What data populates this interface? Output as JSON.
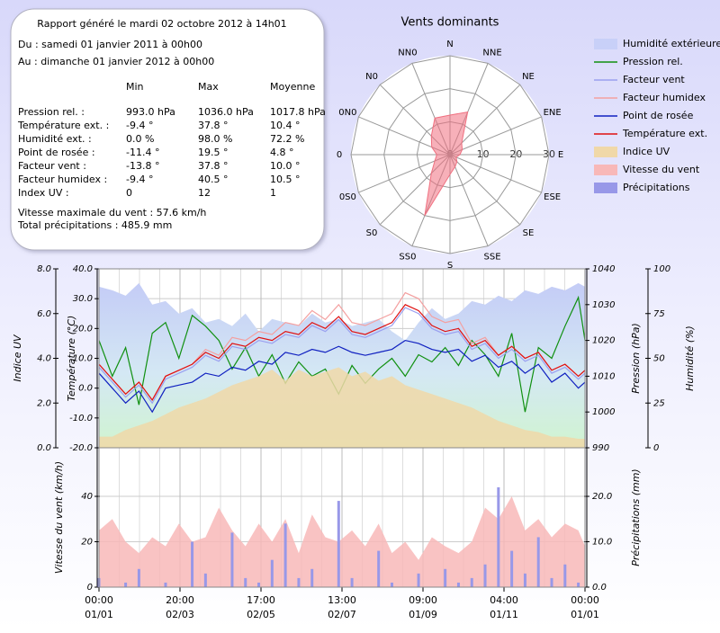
{
  "report": {
    "title": "Rapport généré le mardi 02 octobre 2012 à 14h01",
    "from": "Du : samedi 01 janvier 2011 à 00h00",
    "to": "Au : dimanche 01 janvier 2012 à 00h00",
    "columns": [
      "Min",
      "Max",
      "Moyenne"
    ],
    "rows": [
      [
        "Pression rel. :",
        "993.0 hPa",
        "1036.0 hPa",
        "1017.8 hPa"
      ],
      [
        "Température ext. :",
        "-9.4 °",
        "37.8 °",
        "10.4 °"
      ],
      [
        "Humidité ext. :",
        "0.0 %",
        "98.0 %",
        "72.2 %"
      ],
      [
        "Point de rosée :",
        "-11.4 °",
        "19.5 °",
        "4.8 °"
      ],
      [
        "Facteur vent :",
        "-13.8 °",
        "37.8 °",
        "10.0 °"
      ],
      [
        "Facteur humidex :",
        "-9.4 °",
        "40.5 °",
        "10.5 °"
      ],
      [
        "Index UV :",
        "0",
        "12",
        "1"
      ]
    ],
    "max_wind": "Vitesse maximale du vent : 57.6 km/h",
    "total_rain": "Total précipitations : 485.9 mm"
  },
  "chart_data": [
    {
      "type": "radar",
      "title": "Vents dominants",
      "categories": [
        "N",
        "NNE",
        "NE",
        "ENE",
        "E",
        "ESE",
        "SE",
        "SSE",
        "S",
        "SS0",
        "S0",
        "0S0",
        "0",
        "0N0",
        "N0",
        "NN0"
      ],
      "values": [
        12,
        14,
        5,
        4,
        3,
        2,
        3,
        4,
        6,
        20,
        8,
        5,
        4,
        6,
        8,
        12
      ],
      "color": "#f07080",
      "rlim": [
        0,
        30
      ],
      "rticks": [
        0,
        10,
        20,
        30
      ]
    },
    {
      "type": "line",
      "x": [
        0,
        10,
        20,
        30,
        40,
        50,
        60,
        70,
        80,
        90,
        100,
        110,
        120,
        130,
        140,
        150,
        160,
        170,
        180,
        190,
        200,
        210,
        220,
        230,
        240,
        250,
        260,
        270,
        280,
        290,
        300,
        310,
        320,
        330,
        340,
        350,
        360,
        365
      ],
      "xlim": [
        0,
        365
      ],
      "xticks": [
        {
          "value": 0,
          "label": "00:00"
        },
        {
          "value": 60.833,
          "label": "20:00"
        },
        {
          "value": 121.667,
          "label": "17:00"
        },
        {
          "value": 182.5,
          "label": "13:00"
        },
        {
          "value": 243.333,
          "label": "09:00"
        },
        {
          "value": 304.167,
          "label": "04:00"
        },
        {
          "value": 365,
          "label": "00:00"
        }
      ],
      "xtick_dates": [
        "01/01",
        "02/03",
        "02/05",
        "02/07",
        "01/09",
        "01/11",
        "01/01"
      ],
      "axes": {
        "uv": {
          "label": "Indice UV",
          "panel": "upper",
          "lim": [
            0,
            8
          ],
          "ticks": [
            {
              "value": 0,
              "label": "0.0"
            },
            {
              "value": 2,
              "label": "2.0"
            },
            {
              "value": 4,
              "label": "4.0"
            },
            {
              "value": 6,
              "label": "6.0"
            },
            {
              "value": 8,
              "label": "8.0"
            }
          ]
        },
        "temp": {
          "label": "Température (°C)",
          "panel": "upper",
          "lim": [
            -20,
            40
          ],
          "grid": true,
          "ticks": [
            {
              "value": -20,
              "label": "-20.0"
            },
            {
              "value": -10,
              "label": "-10.0"
            },
            {
              "value": 0,
              "label": "0.0"
            },
            {
              "value": 10,
              "label": "10.0"
            },
            {
              "value": 20,
              "label": "20.0"
            },
            {
              "value": 30,
              "label": "30.0"
            },
            {
              "value": 40,
              "label": "40.0"
            }
          ]
        },
        "pressure": {
          "label": "Pression (hPa)",
          "panel": "upper",
          "lim": [
            990,
            1040
          ],
          "ticks": [
            990,
            1000,
            1010,
            1020,
            1030,
            1040
          ]
        },
        "humidity": {
          "label": "Humidité (%)",
          "panel": "upper",
          "lim": [
            0,
            100
          ],
          "ticks": [
            0,
            25,
            50,
            75,
            100
          ]
        },
        "wind": {
          "label": "Vitesse du vent (km/h)",
          "panel": "lower",
          "lim": [
            0,
            61.4
          ],
          "grid": true,
          "ticks": [
            0,
            20,
            40
          ]
        },
        "rain": {
          "label": "Précipitations (mm)",
          "panel": "lower",
          "lim": [
            0,
            30.7
          ],
          "ticks": [
            {
              "value": 0,
              "label": "0.0"
            },
            {
              "value": 10,
              "label": "10.0"
            },
            {
              "value": 20,
              "label": "20.0"
            }
          ]
        }
      },
      "series": [
        {
          "name": "Humidité extérieure",
          "axis": "humidity",
          "style": "area",
          "color": "#c8d0f8",
          "values": [
            90,
            88,
            85,
            92,
            80,
            82,
            75,
            78,
            70,
            72,
            68,
            75,
            65,
            72,
            70,
            68,
            75,
            70,
            72,
            68,
            70,
            72,
            65,
            60,
            70,
            78,
            72,
            75,
            82,
            80,
            85,
            82,
            88,
            86,
            90,
            88,
            92,
            90
          ]
        },
        {
          "name": "Pression rel.",
          "axis": "pressure",
          "style": "line",
          "color": "#109010",
          "values": [
            1020,
            1010,
            1018,
            1002,
            1022,
            1025,
            1015,
            1027,
            1024,
            1020,
            1012,
            1018,
            1010,
            1016,
            1008,
            1014,
            1010,
            1012,
            1005,
            1013,
            1008,
            1012,
            1015,
            1010,
            1016,
            1014,
            1018,
            1013,
            1020,
            1016,
            1010,
            1022,
            1000,
            1018,
            1015,
            1024,
            1032,
            1020
          ]
        },
        {
          "name": "Facteur vent",
          "axis": "temp",
          "style": "line",
          "color": "#9aa0f0",
          "values": [
            7,
            2,
            -3,
            1,
            -5,
            3,
            5,
            7,
            11,
            9,
            14,
            13,
            16,
            15,
            18,
            17,
            21,
            19,
            23,
            18,
            17,
            19,
            21,
            27,
            25,
            20,
            18,
            19,
            13,
            15,
            10,
            13,
            9,
            11,
            5,
            7,
            3,
            5
          ]
        },
        {
          "name": "Facteur humidex",
          "axis": "temp",
          "style": "line",
          "color": "#f4a0a0",
          "values": [
            8,
            3,
            -2,
            2,
            -4,
            4,
            6,
            8,
            13,
            11,
            17,
            16,
            19,
            18,
            22,
            21,
            26,
            23,
            28,
            22,
            21,
            23,
            25,
            32,
            30,
            24,
            22,
            23,
            15,
            17,
            11,
            14,
            10,
            12,
            6,
            8,
            4,
            6
          ]
        },
        {
          "name": "Point de rosée",
          "axis": "temp",
          "style": "line",
          "color": "#1020c0",
          "values": [
            5,
            0,
            -5,
            -1,
            -8,
            0,
            1,
            2,
            5,
            4,
            7,
            6,
            9,
            8,
            12,
            11,
            13,
            12,
            14,
            12,
            11,
            12,
            13,
            16,
            15,
            13,
            12,
            13,
            9,
            11,
            7,
            9,
            5,
            8,
            2,
            5,
            0,
            2
          ]
        },
        {
          "name": "Température ext.",
          "axis": "temp",
          "style": "line",
          "color": "#e01010",
          "values": [
            8,
            3,
            -2,
            2,
            -4,
            4,
            6,
            8,
            12,
            10,
            15,
            14,
            17,
            16,
            19,
            18,
            22,
            20,
            24,
            19,
            18,
            20,
            22,
            28,
            26,
            21,
            19,
            20,
            14,
            16,
            11,
            14,
            10,
            12,
            6,
            8,
            4,
            6
          ]
        },
        {
          "name": "Indice UV",
          "axis": "uv",
          "style": "area",
          "color": "#f0d8a8",
          "values": [
            0.5,
            0.5,
            0.8,
            1,
            1.2,
            1.5,
            1.8,
            2,
            2.2,
            2.5,
            2.8,
            3,
            3.2,
            3.5,
            3,
            3.5,
            3.2,
            3.4,
            3.6,
            3.2,
            3.4,
            3,
            3.2,
            2.8,
            2.6,
            2.4,
            2.2,
            2,
            1.8,
            1.5,
            1.2,
            1,
            0.8,
            0.7,
            0.5,
            0.5,
            0.4,
            0.4
          ]
        },
        {
          "name": "Vitesse du vent",
          "axis": "wind",
          "style": "area",
          "color": "#f8b8b8",
          "values": [
            25,
            30,
            20,
            15,
            22,
            18,
            28,
            20,
            22,
            35,
            25,
            18,
            28,
            20,
            30,
            15,
            32,
            22,
            20,
            25,
            18,
            28,
            15,
            20,
            12,
            22,
            18,
            15,
            20,
            35,
            30,
            40,
            25,
            30,
            22,
            28,
            25,
            18
          ]
        },
        {
          "name": "Précipitations",
          "axis": "rain",
          "style": "bar",
          "color": "#9898e8",
          "values": [
            2,
            0,
            1,
            4,
            0,
            1,
            0,
            10,
            3,
            0,
            12,
            2,
            1,
            6,
            14,
            2,
            4,
            0,
            19,
            2,
            0,
            8,
            1,
            0,
            3,
            0,
            4,
            1,
            2,
            5,
            22,
            8,
            3,
            11,
            2,
            5,
            1,
            0
          ]
        }
      ]
    }
  ]
}
